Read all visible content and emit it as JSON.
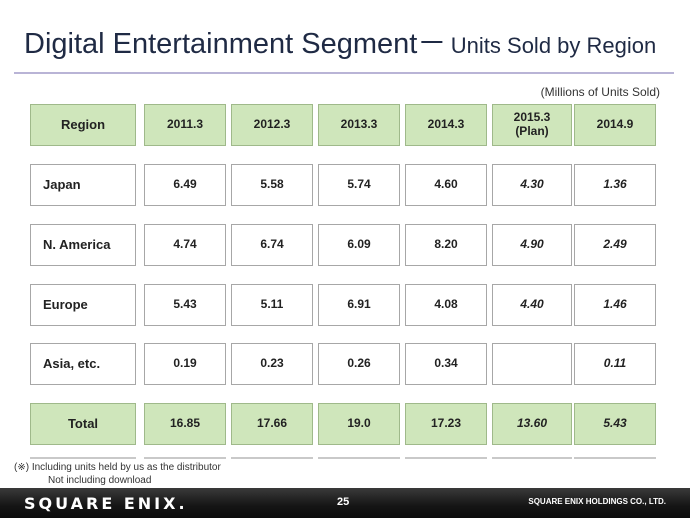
{
  "slide": {
    "title": "Digital Entertainment Segment",
    "title_dash": "－",
    "subtitle": "Units Sold by Region",
    "unit_note": "(Millions of Units Sold)"
  },
  "table": {
    "headers": [
      "Region",
      "2011.3",
      "2012.3",
      "2013.3",
      "2014.3",
      "2015.3\n(Plan)",
      "2014.9"
    ],
    "rows": [
      {
        "region": "Japan",
        "values": [
          "6.49",
          "5.58",
          "5.74",
          "4.60",
          "4.30",
          "1.36"
        ]
      },
      {
        "region": "N. America",
        "values": [
          "4.74",
          "6.74",
          "6.09",
          "8.20",
          "4.90",
          "2.49"
        ]
      },
      {
        "region": "Europe",
        "values": [
          "5.43",
          "5.11",
          "6.91",
          "4.08",
          "4.40",
          "1.46"
        ]
      },
      {
        "region": "Asia, etc.",
        "values": [
          "0.19",
          "0.23",
          "0.26",
          "0.34",
          "",
          "0.11"
        ]
      }
    ],
    "total": {
      "region": "Total",
      "values": [
        "16.85",
        "17.66",
        "19.0",
        "17.23",
        "13.60",
        "5.43"
      ]
    }
  },
  "footnote": {
    "line1": "(※) Including units held by us as the distributor",
    "line2": "Not including download"
  },
  "footer": {
    "logo": "SQUARE ENIX.",
    "page_number": "25",
    "company": "SQUARE ENIX HOLDINGS CO., LTD."
  },
  "colors": {
    "header_fill": "#cfe6bb",
    "title_text": "#1f2a44",
    "footer_bar": "#151515"
  }
}
